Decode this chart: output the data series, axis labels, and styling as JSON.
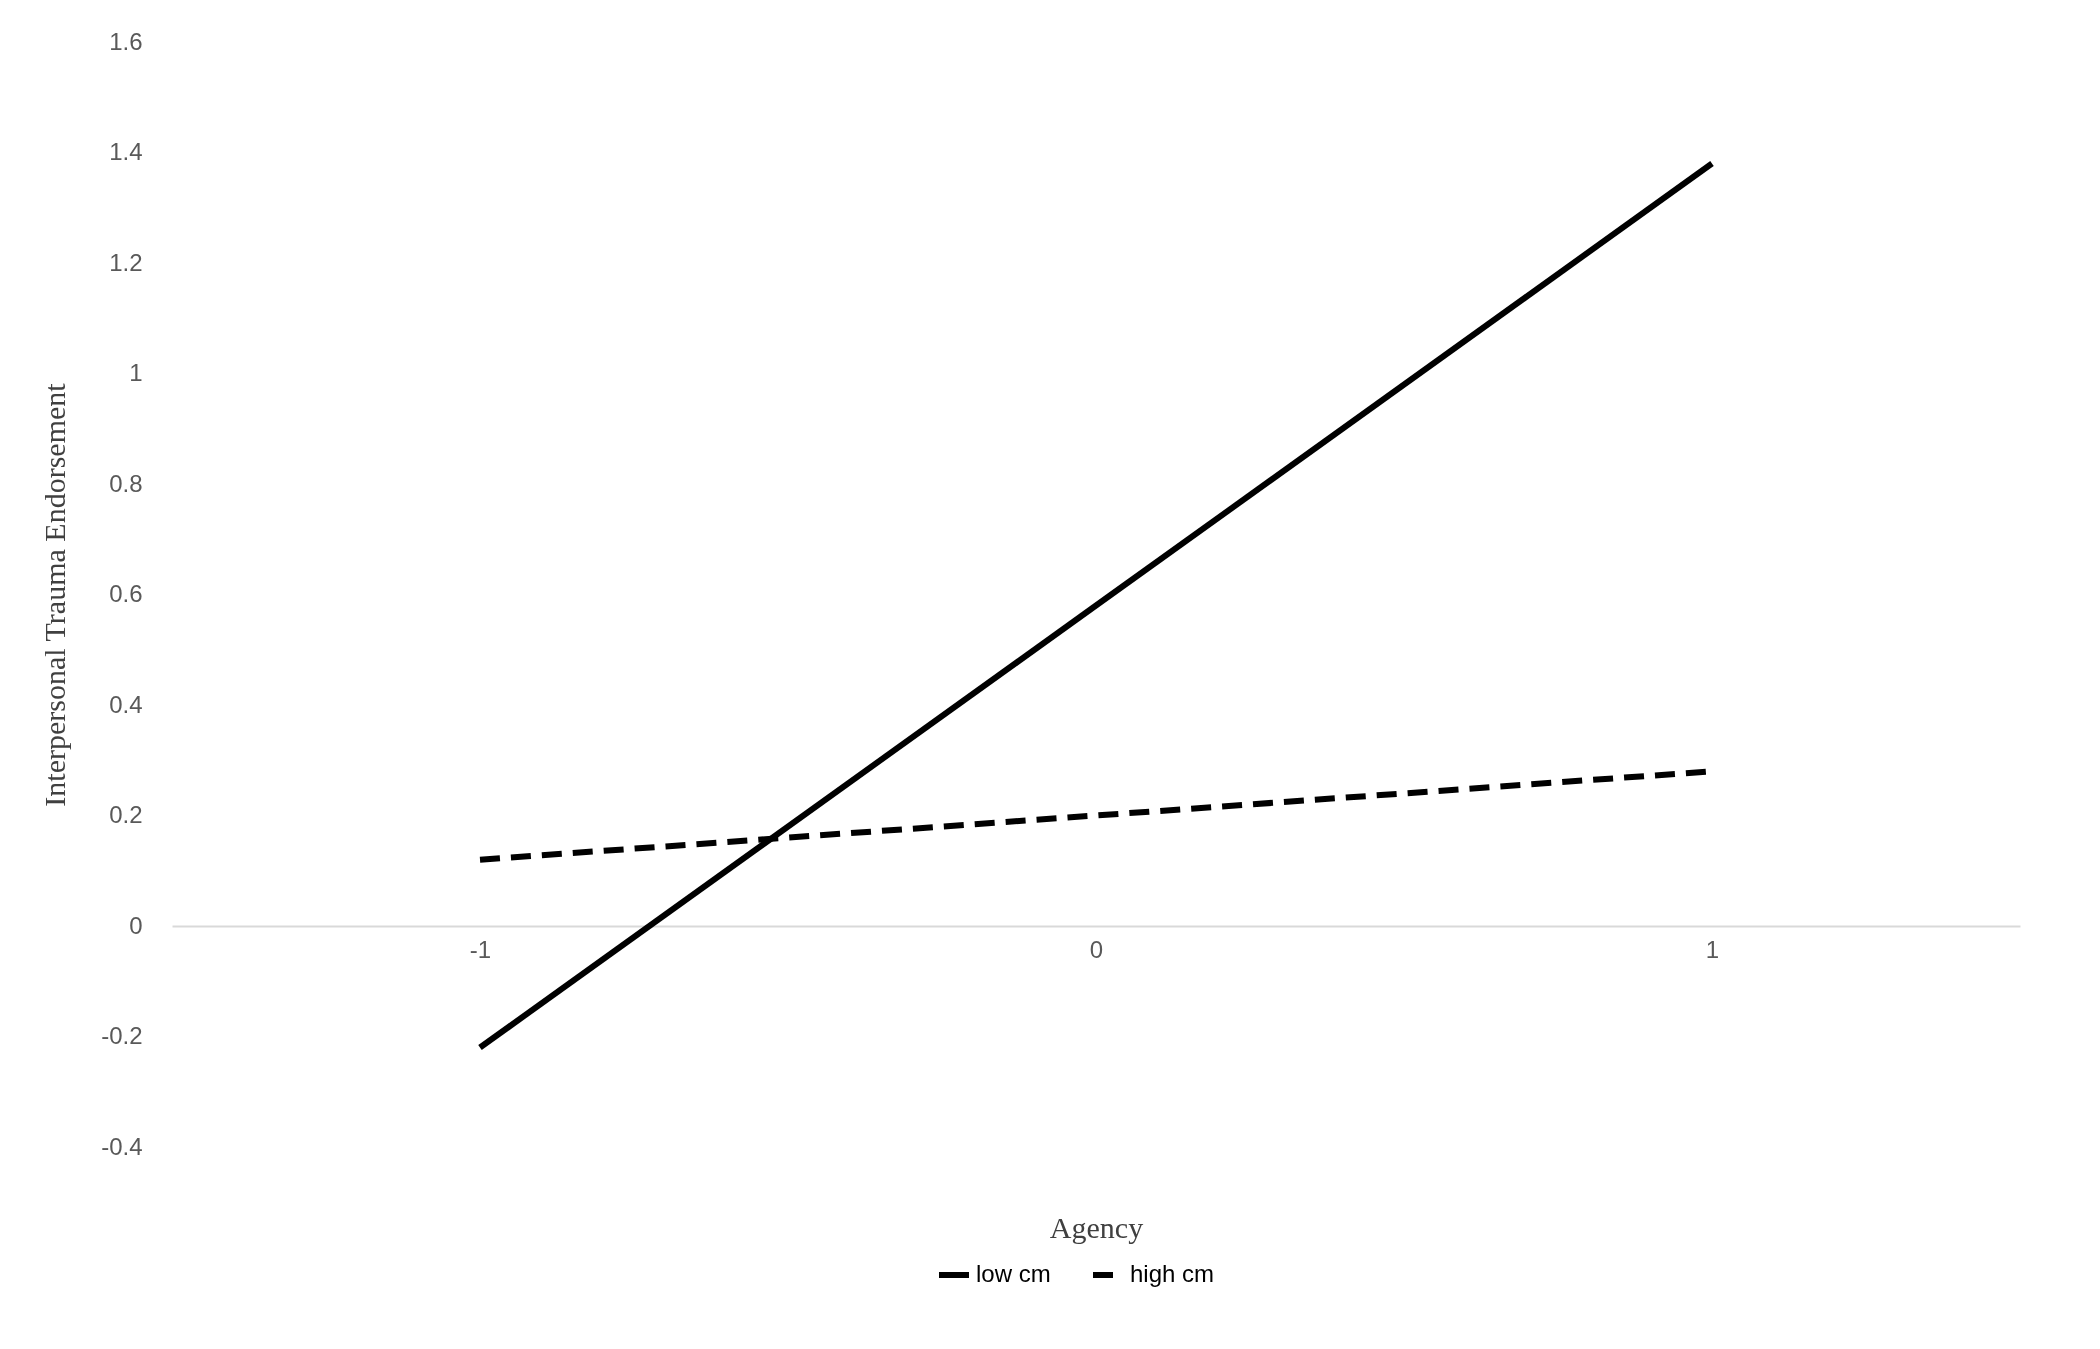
{
  "chart_data": {
    "type": "line",
    "xlabel": "Agency",
    "ylabel": "Interpersonal Trauma Endorsement",
    "categories": [
      "-1",
      "0",
      "1"
    ],
    "series": [
      {
        "name": "low cm",
        "color": "#000000",
        "line_style": "solid",
        "values": [
          -0.22,
          0.58,
          1.38
        ]
      },
      {
        "name": "high cm",
        "color": "#000000",
        "line_style": "dashed",
        "values": [
          0.12,
          0.2,
          0.28
        ]
      }
    ],
    "ylim": [
      -0.4,
      1.6
    ],
    "yticks": [
      -0.4,
      -0.2,
      0,
      0.2,
      0.4,
      0.6,
      0.8,
      1,
      1.2,
      1.4,
      1.6
    ],
    "grid": false,
    "legend": "bottom",
    "marker": "none"
  }
}
